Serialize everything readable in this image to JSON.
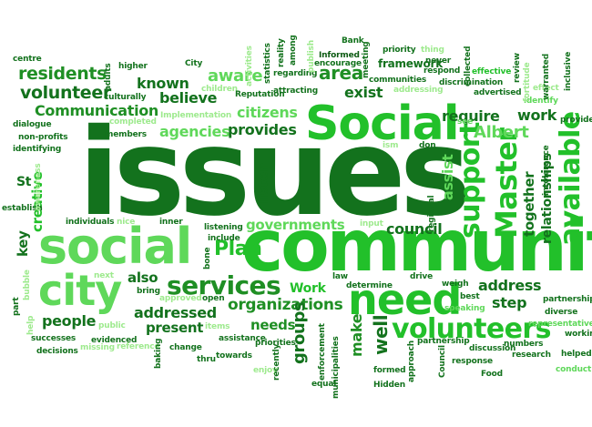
{
  "words": {
    "issues": "issues",
    "community": "community",
    "social_big": "Social",
    "social_small": "social",
    "need": "need",
    "city": "city",
    "volunteers": "volunteers",
    "services": "services",
    "master": "Master",
    "available": "available",
    "support": "support",
    "organizations": "organizations",
    "volunteer": "volunteer",
    "residents": "residents",
    "communication": "Communication",
    "agencies": "agencies",
    "provides": "provides",
    "citizens": "citizens",
    "believe": "believe",
    "known": "known",
    "aware": "aware",
    "area": "area",
    "exist": "exist",
    "require": "require",
    "work": "work",
    "albert": "Albert",
    "council": "council",
    "governments": "governments",
    "plan": "Plan",
    "also": "also",
    "people": "people",
    "addressed": "addressed",
    "present": "present",
    "needs": "needs",
    "groups": "groups",
    "work_cap": "Work",
    "well": "well",
    "address": "address",
    "step": "step",
    "relationships": "relationships",
    "together": "together",
    "listen": "listen",
    "make": "make",
    "key": "key",
    "creative": "creative",
    "st": "St",
    "assist": "assist",
    "bank": "Bank",
    "informed": "Informed",
    "encourage": "encourage",
    "meeting": "meeting",
    "priority": "priority",
    "thing": "thing",
    "never": "never",
    "collected": "collected",
    "framework": "framework",
    "respond": "respond",
    "effective": "effective",
    "review": "review",
    "fortitude": "fortitude",
    "warranted": "warranted",
    "inclusive": "inclusive",
    "effect": "effect",
    "identify": "identify",
    "discrimination": "discrimination",
    "communities": "communities",
    "addressing": "addressing",
    "advertised": "advertised",
    "centre": "centre",
    "higher": "higher",
    "adults": "adults",
    "city_small": "City",
    "activities": "activities",
    "statistics": "statistics",
    "reality": "reality",
    "among": "among",
    "publish": "publish",
    "regarding": "regarding",
    "attracting": "attracting",
    "children": "children",
    "culturally": "culturally",
    "reputation": "Reputation",
    "implementation": "Implementation",
    "completed": "completed",
    "dialogue": "dialogue",
    "nonprofits": "non-profits",
    "members": "members",
    "identifying": "identifying",
    "establish": "establish",
    "individuals": "individuals",
    "nice": "nice",
    "inner": "inner",
    "listening": "listening",
    "include": "include",
    "awareness": "awareness",
    "input": "input",
    "regional": "regional",
    "intolerance": "intolerance",
    "ism": "ism",
    "don": "don",
    "see": "see",
    "provide": "provide",
    "next": "next",
    "bring": "bring",
    "approved": "approved",
    "open": "open",
    "bubble": "bubble",
    "part": "part",
    "help": "help",
    "law": "law",
    "determine": "determine",
    "drive": "drive",
    "weigh": "weigh",
    "best": "best",
    "diverse": "diverse",
    "speaking": "speaking",
    "partnerships": "partnerships",
    "representative": "representative",
    "working": "working",
    "successes": "successes",
    "decisions": "decisions",
    "public": "public",
    "missing": "missing",
    "evidenced": "evidenced",
    "reference": "reference",
    "items": "items",
    "change": "change",
    "assistance": "assistance",
    "towards": "towards",
    "thru": "thru",
    "baking": "baking",
    "priorities": "priorities",
    "recently": "recently",
    "enjoy": "enjoy",
    "equal": "equal",
    "enforcement": "enforcement",
    "municipalities": "municipalities",
    "approach": "approach",
    "hidden": "Hidden",
    "formed": "formed",
    "partnership": "partnership",
    "council_cap": "Council",
    "discussion": "discussion",
    "response": "response",
    "research": "research",
    "numbers": "numbers",
    "helped": "helped",
    "conduct": "conduct",
    "food": "Food",
    "bone": "bone"
  },
  "colors": {
    "dark_green": "#13721d",
    "medium_green": "#1f8f24",
    "bright_green": "#22c02a",
    "light_green": "#5fd85a",
    "pale_green": "#9eea8e",
    "deep_green": "#0c5a12"
  }
}
